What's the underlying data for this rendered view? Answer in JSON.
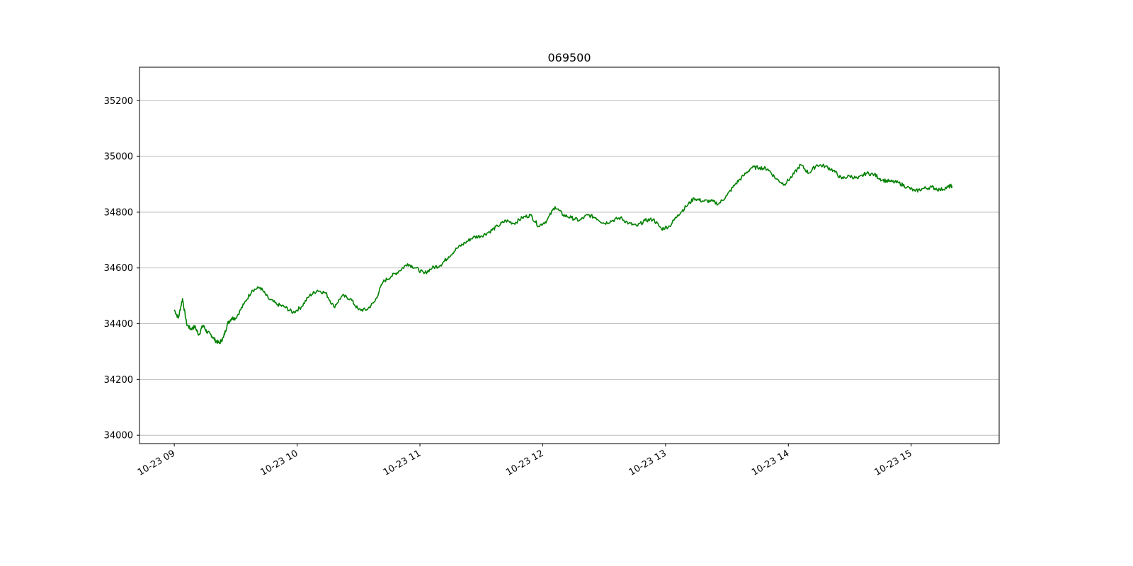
{
  "chart_data": {
    "type": "line",
    "title": "069500",
    "xlabel": "",
    "ylabel": "",
    "x_ticks": [
      "10-23 09",
      "10-23 10",
      "10-23 11",
      "10-23 12",
      "10-23 13",
      "10-23 14",
      "10-23 15"
    ],
    "x_tick_hours": [
      9,
      10,
      11,
      12,
      13,
      14,
      15
    ],
    "y_ticks": [
      34000,
      34200,
      34400,
      34600,
      34800,
      35000,
      35200
    ],
    "xlim": [
      "10-23 08:43",
      "10-23 15:43"
    ],
    "ylim": [
      33970,
      35320
    ],
    "grid": "y-major",
    "legend": "none",
    "series": [
      {
        "color": "#008000",
        "x": [
          "09:00",
          "09:02",
          "09:04",
          "09:06",
          "09:08",
          "09:10",
          "09:12",
          "09:14",
          "09:16",
          "09:18",
          "09:20",
          "09:22",
          "09:24",
          "09:26",
          "09:28",
          "09:30",
          "09:34",
          "09:38",
          "09:42",
          "09:46",
          "09:50",
          "09:54",
          "09:58",
          "10:02",
          "10:06",
          "10:10",
          "10:14",
          "10:18",
          "10:22",
          "10:26",
          "10:30",
          "10:34",
          "10:38",
          "10:42",
          "10:46",
          "10:50",
          "10:54",
          "10:58",
          "11:02",
          "11:06",
          "11:10",
          "11:14",
          "11:18",
          "11:22",
          "11:26",
          "11:30",
          "11:34",
          "11:38",
          "11:42",
          "11:46",
          "11:50",
          "11:54",
          "11:58",
          "12:02",
          "12:06",
          "12:10",
          "12:14",
          "12:18",
          "12:22",
          "12:26",
          "12:30",
          "12:34",
          "12:38",
          "12:42",
          "12:46",
          "12:50",
          "12:54",
          "12:58",
          "13:02",
          "13:06",
          "13:10",
          "13:14",
          "13:18",
          "13:22",
          "13:26",
          "13:30",
          "13:34",
          "13:38",
          "13:42",
          "13:46",
          "13:50",
          "13:54",
          "13:58",
          "14:02",
          "14:06",
          "14:10",
          "14:14",
          "14:18",
          "14:22",
          "14:26",
          "14:30",
          "14:34",
          "14:38",
          "14:42",
          "14:46",
          "14:50",
          "14:54",
          "14:58",
          "15:02",
          "15:06",
          "15:10",
          "15:14",
          "15:18",
          "15:20"
        ],
        "y": [
          34450,
          34420,
          34490,
          34400,
          34380,
          34390,
          34360,
          34395,
          34370,
          34360,
          34340,
          34330,
          34350,
          34400,
          34420,
          34420,
          34470,
          34520,
          34530,
          34490,
          34470,
          34460,
          34440,
          34460,
          34500,
          34520,
          34510,
          34460,
          34500,
          34490,
          34450,
          34450,
          34480,
          34550,
          34570,
          34590,
          34615,
          34600,
          34580,
          34600,
          34610,
          34640,
          34670,
          34690,
          34710,
          34715,
          34730,
          34750,
          34770,
          34760,
          34780,
          34790,
          34750,
          34770,
          34820,
          34790,
          34780,
          34770,
          34790,
          34780,
          34760,
          34770,
          34780,
          34760,
          34750,
          34770,
          34775,
          34740,
          34750,
          34790,
          34820,
          34850,
          34840,
          34840,
          34830,
          34860,
          34900,
          34930,
          34960,
          34960,
          34955,
          34920,
          34900,
          34930,
          34970,
          34940,
          34970,
          34965,
          34950,
          34920,
          34930,
          34920,
          34940,
          34935,
          34915,
          34910,
          34905,
          34890,
          34875,
          34885,
          34890,
          34880,
          34890,
          34895
        ]
      }
    ]
  }
}
